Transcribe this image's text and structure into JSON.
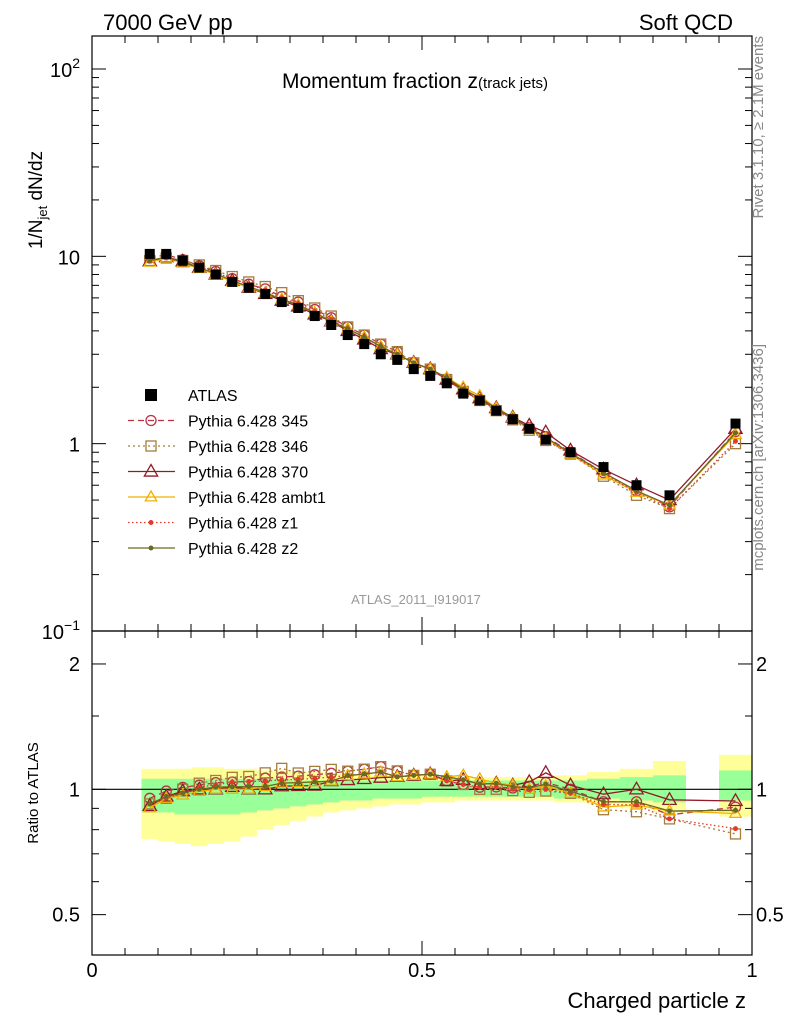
{
  "header": {
    "left": "7000 GeV pp",
    "right": "Soft QCD"
  },
  "side_labels": {
    "rivet": "Rivet 3.1.10, ≥ 2.1M events",
    "mcplots": "mcplots.cern.ch [arXiv:1306.3436]"
  },
  "chart_data": {
    "type": "scatter",
    "title": "Momentum fraction z",
    "title_sub": "(track jets)",
    "analysis_id": "ATLAS_2011_I919017",
    "xlabel": "Charged particle z",
    "xlim": [
      0,
      1
    ],
    "xticks": [
      {
        "v": 0,
        "label": "0"
      },
      {
        "v": 0.5,
        "label": "0.5"
      },
      {
        "v": 1,
        "label": "1"
      }
    ],
    "main": {
      "ylabel": "1/N",
      "ylabel_sub": "jet",
      "ylabel_rest": " dN/dz",
      "yscale": "log",
      "ylim": [
        0.1,
        150
      ],
      "yticks": [
        {
          "v": 100,
          "base": "10",
          "exp": "2"
        },
        {
          "v": 10,
          "base": "10",
          "exp": ""
        },
        {
          "v": 1,
          "base": "1",
          "exp": ""
        },
        {
          "v": 0.1,
          "base": "10",
          "exp": "−1"
        }
      ]
    },
    "ratio": {
      "ylabel": "Ratio to ATLAS",
      "yscale": "log",
      "ylim": [
        0.4,
        2.4
      ],
      "yticks": [
        {
          "v": 2,
          "label": "2"
        },
        {
          "v": 1,
          "label": "1"
        },
        {
          "v": 0.5,
          "label": "0.5"
        }
      ],
      "band_edges": [
        0.075,
        0.1,
        0.125,
        0.15,
        0.175,
        0.2,
        0.225,
        0.25,
        0.275,
        0.3,
        0.325,
        0.35,
        0.375,
        0.4,
        0.425,
        0.45,
        0.475,
        0.5,
        0.525,
        0.55,
        0.575,
        0.6,
        0.625,
        0.65,
        0.675,
        0.7,
        0.75,
        0.8,
        0.85,
        0.9,
        0.95,
        1.0
      ],
      "band_green": [
        [
          0.88,
          1.06
        ],
        [
          0.88,
          1.06
        ],
        [
          0.87,
          1.06
        ],
        [
          0.87,
          1.06
        ],
        [
          0.87,
          1.06
        ],
        [
          0.87,
          1.06
        ],
        [
          0.88,
          1.06
        ],
        [
          0.89,
          1.06
        ],
        [
          0.9,
          1.06
        ],
        [
          0.91,
          1.05
        ],
        [
          0.92,
          1.05
        ],
        [
          0.93,
          1.05
        ],
        [
          0.94,
          1.05
        ],
        [
          0.94,
          1.05
        ],
        [
          0.95,
          1.05
        ],
        [
          0.95,
          1.05
        ],
        [
          0.95,
          1.05
        ],
        [
          0.96,
          1.05
        ],
        [
          0.96,
          1.05
        ],
        [
          0.96,
          1.05
        ],
        [
          0.96,
          1.05
        ],
        [
          0.96,
          1.05
        ],
        [
          0.96,
          1.05
        ],
        [
          0.96,
          1.05
        ],
        [
          0.96,
          1.05
        ],
        [
          0.95,
          1.05
        ],
        [
          0.95,
          1.06
        ],
        [
          0.94,
          1.07
        ],
        [
          0.93,
          1.08
        ],
        [
          null,
          null
        ],
        [
          0.94,
          1.11
        ]
      ],
      "band_yellow": [
        [
          0.76,
          1.12
        ],
        [
          0.75,
          1.12
        ],
        [
          0.74,
          1.12
        ],
        [
          0.73,
          1.13
        ],
        [
          0.74,
          1.13
        ],
        [
          0.75,
          1.12
        ],
        [
          0.77,
          1.12
        ],
        [
          0.8,
          1.11
        ],
        [
          0.82,
          1.11
        ],
        [
          0.84,
          1.1
        ],
        [
          0.86,
          1.1
        ],
        [
          0.88,
          1.09
        ],
        [
          0.89,
          1.09
        ],
        [
          0.9,
          1.09
        ],
        [
          0.91,
          1.08
        ],
        [
          0.92,
          1.08
        ],
        [
          0.92,
          1.08
        ],
        [
          0.93,
          1.08
        ],
        [
          0.93,
          1.07
        ],
        [
          0.94,
          1.07
        ],
        [
          0.94,
          1.07
        ],
        [
          0.94,
          1.07
        ],
        [
          0.94,
          1.07
        ],
        [
          0.94,
          1.07
        ],
        [
          0.94,
          1.07
        ],
        [
          0.93,
          1.08
        ],
        [
          0.92,
          1.1
        ],
        [
          0.9,
          1.12
        ],
        [
          0.88,
          1.17
        ],
        [
          null,
          null
        ],
        [
          0.86,
          1.21
        ]
      ]
    },
    "x": [
      0.0875,
      0.1125,
      0.1375,
      0.1625,
      0.1875,
      0.2125,
      0.2375,
      0.2625,
      0.2875,
      0.3125,
      0.3375,
      0.3625,
      0.3875,
      0.4125,
      0.4375,
      0.4625,
      0.4875,
      0.5125,
      0.5375,
      0.5625,
      0.5875,
      0.6125,
      0.6375,
      0.6625,
      0.6875,
      0.725,
      0.775,
      0.825,
      0.875,
      0.975
    ],
    "data": {
      "name": "ATLAS",
      "values": [
        10.3,
        10.3,
        9.5,
        8.7,
        8.0,
        7.3,
        6.8,
        6.3,
        5.7,
        5.3,
        4.8,
        4.3,
        3.8,
        3.4,
        3.0,
        2.8,
        2.5,
        2.3,
        2.1,
        1.85,
        1.7,
        1.5,
        1.35,
        1.2,
        1.05,
        0.9,
        0.75,
        0.6,
        0.53,
        1.28
      ]
    },
    "series": [
      {
        "name": "Pythia 6.428 345",
        "color": "#b83246",
        "dash": "6,4",
        "marker": "circle",
        "marker_size": 5,
        "values": [
          9.8,
          10.2,
          9.6,
          8.9,
          8.3,
          7.6,
          7.1,
          6.7,
          6.1,
          5.7,
          5.2,
          4.7,
          4.2,
          3.8,
          3.4,
          3.1,
          2.7,
          2.5,
          2.2,
          1.9,
          1.72,
          1.52,
          1.36,
          1.22,
          1.09,
          0.9,
          0.7,
          0.56,
          0.46,
          1.16
        ]
      },
      {
        "name": "Pythia 6.428 346",
        "color": "#a57c3a",
        "dash": "2,3",
        "marker": "square",
        "marker_size": 5,
        "values": [
          9.5,
          9.8,
          9.5,
          9.0,
          8.4,
          7.8,
          7.3,
          6.9,
          6.4,
          5.8,
          5.3,
          4.8,
          4.2,
          3.8,
          3.4,
          3.1,
          2.7,
          2.5,
          2.2,
          1.9,
          1.7,
          1.5,
          1.34,
          1.18,
          1.04,
          0.88,
          0.67,
          0.53,
          0.45,
          1.0
        ]
      },
      {
        "name": "Pythia 6.428 370",
        "color": "#901c28",
        "dash": "",
        "marker": "triangle",
        "marker_size": 7,
        "values": [
          9.4,
          9.9,
          9.4,
          8.7,
          8.0,
          7.4,
          6.8,
          6.3,
          5.8,
          5.4,
          4.9,
          4.5,
          4.0,
          3.6,
          3.2,
          3.0,
          2.7,
          2.5,
          2.2,
          1.95,
          1.75,
          1.55,
          1.38,
          1.25,
          1.15,
          0.92,
          0.73,
          0.6,
          0.5,
          1.2
        ]
      },
      {
        "name": "Pythia 6.428 ambt1",
        "color": "#f0b000",
        "dash": "",
        "marker": "triangle",
        "marker_size": 6,
        "values": [
          9.3,
          9.8,
          9.2,
          8.6,
          8.0,
          7.3,
          6.8,
          6.4,
          5.9,
          5.5,
          5.0,
          4.5,
          4.1,
          3.7,
          3.3,
          3.0,
          2.7,
          2.5,
          2.25,
          2.0,
          1.8,
          1.55,
          1.38,
          1.2,
          1.07,
          0.88,
          0.68,
          0.55,
          0.47,
          1.12
        ]
      },
      {
        "name": "Pythia 6.428 z1",
        "color": "#e8382a",
        "dash": "1.5,2.5",
        "marker": "dot",
        "marker_size": 2,
        "values": [
          9.5,
          9.8,
          9.3,
          8.8,
          8.2,
          7.6,
          7.1,
          6.6,
          6.0,
          5.6,
          5.1,
          4.6,
          4.1,
          3.7,
          3.3,
          3.0,
          2.7,
          2.5,
          2.2,
          1.9,
          1.72,
          1.52,
          1.35,
          1.2,
          1.05,
          0.88,
          0.69,
          0.55,
          0.45,
          1.03
        ]
      },
      {
        "name": "Pythia 6.428 z2",
        "color": "#6b6a22",
        "dash": "",
        "marker": "dot",
        "marker_size": 2,
        "values": [
          9.5,
          9.9,
          9.3,
          8.7,
          8.1,
          7.4,
          6.9,
          6.4,
          5.9,
          5.5,
          5.0,
          4.5,
          4.1,
          3.7,
          3.3,
          3.0,
          2.7,
          2.5,
          2.25,
          1.95,
          1.75,
          1.55,
          1.37,
          1.21,
          1.08,
          0.89,
          0.7,
          0.56,
          0.47,
          1.14
        ]
      }
    ]
  }
}
